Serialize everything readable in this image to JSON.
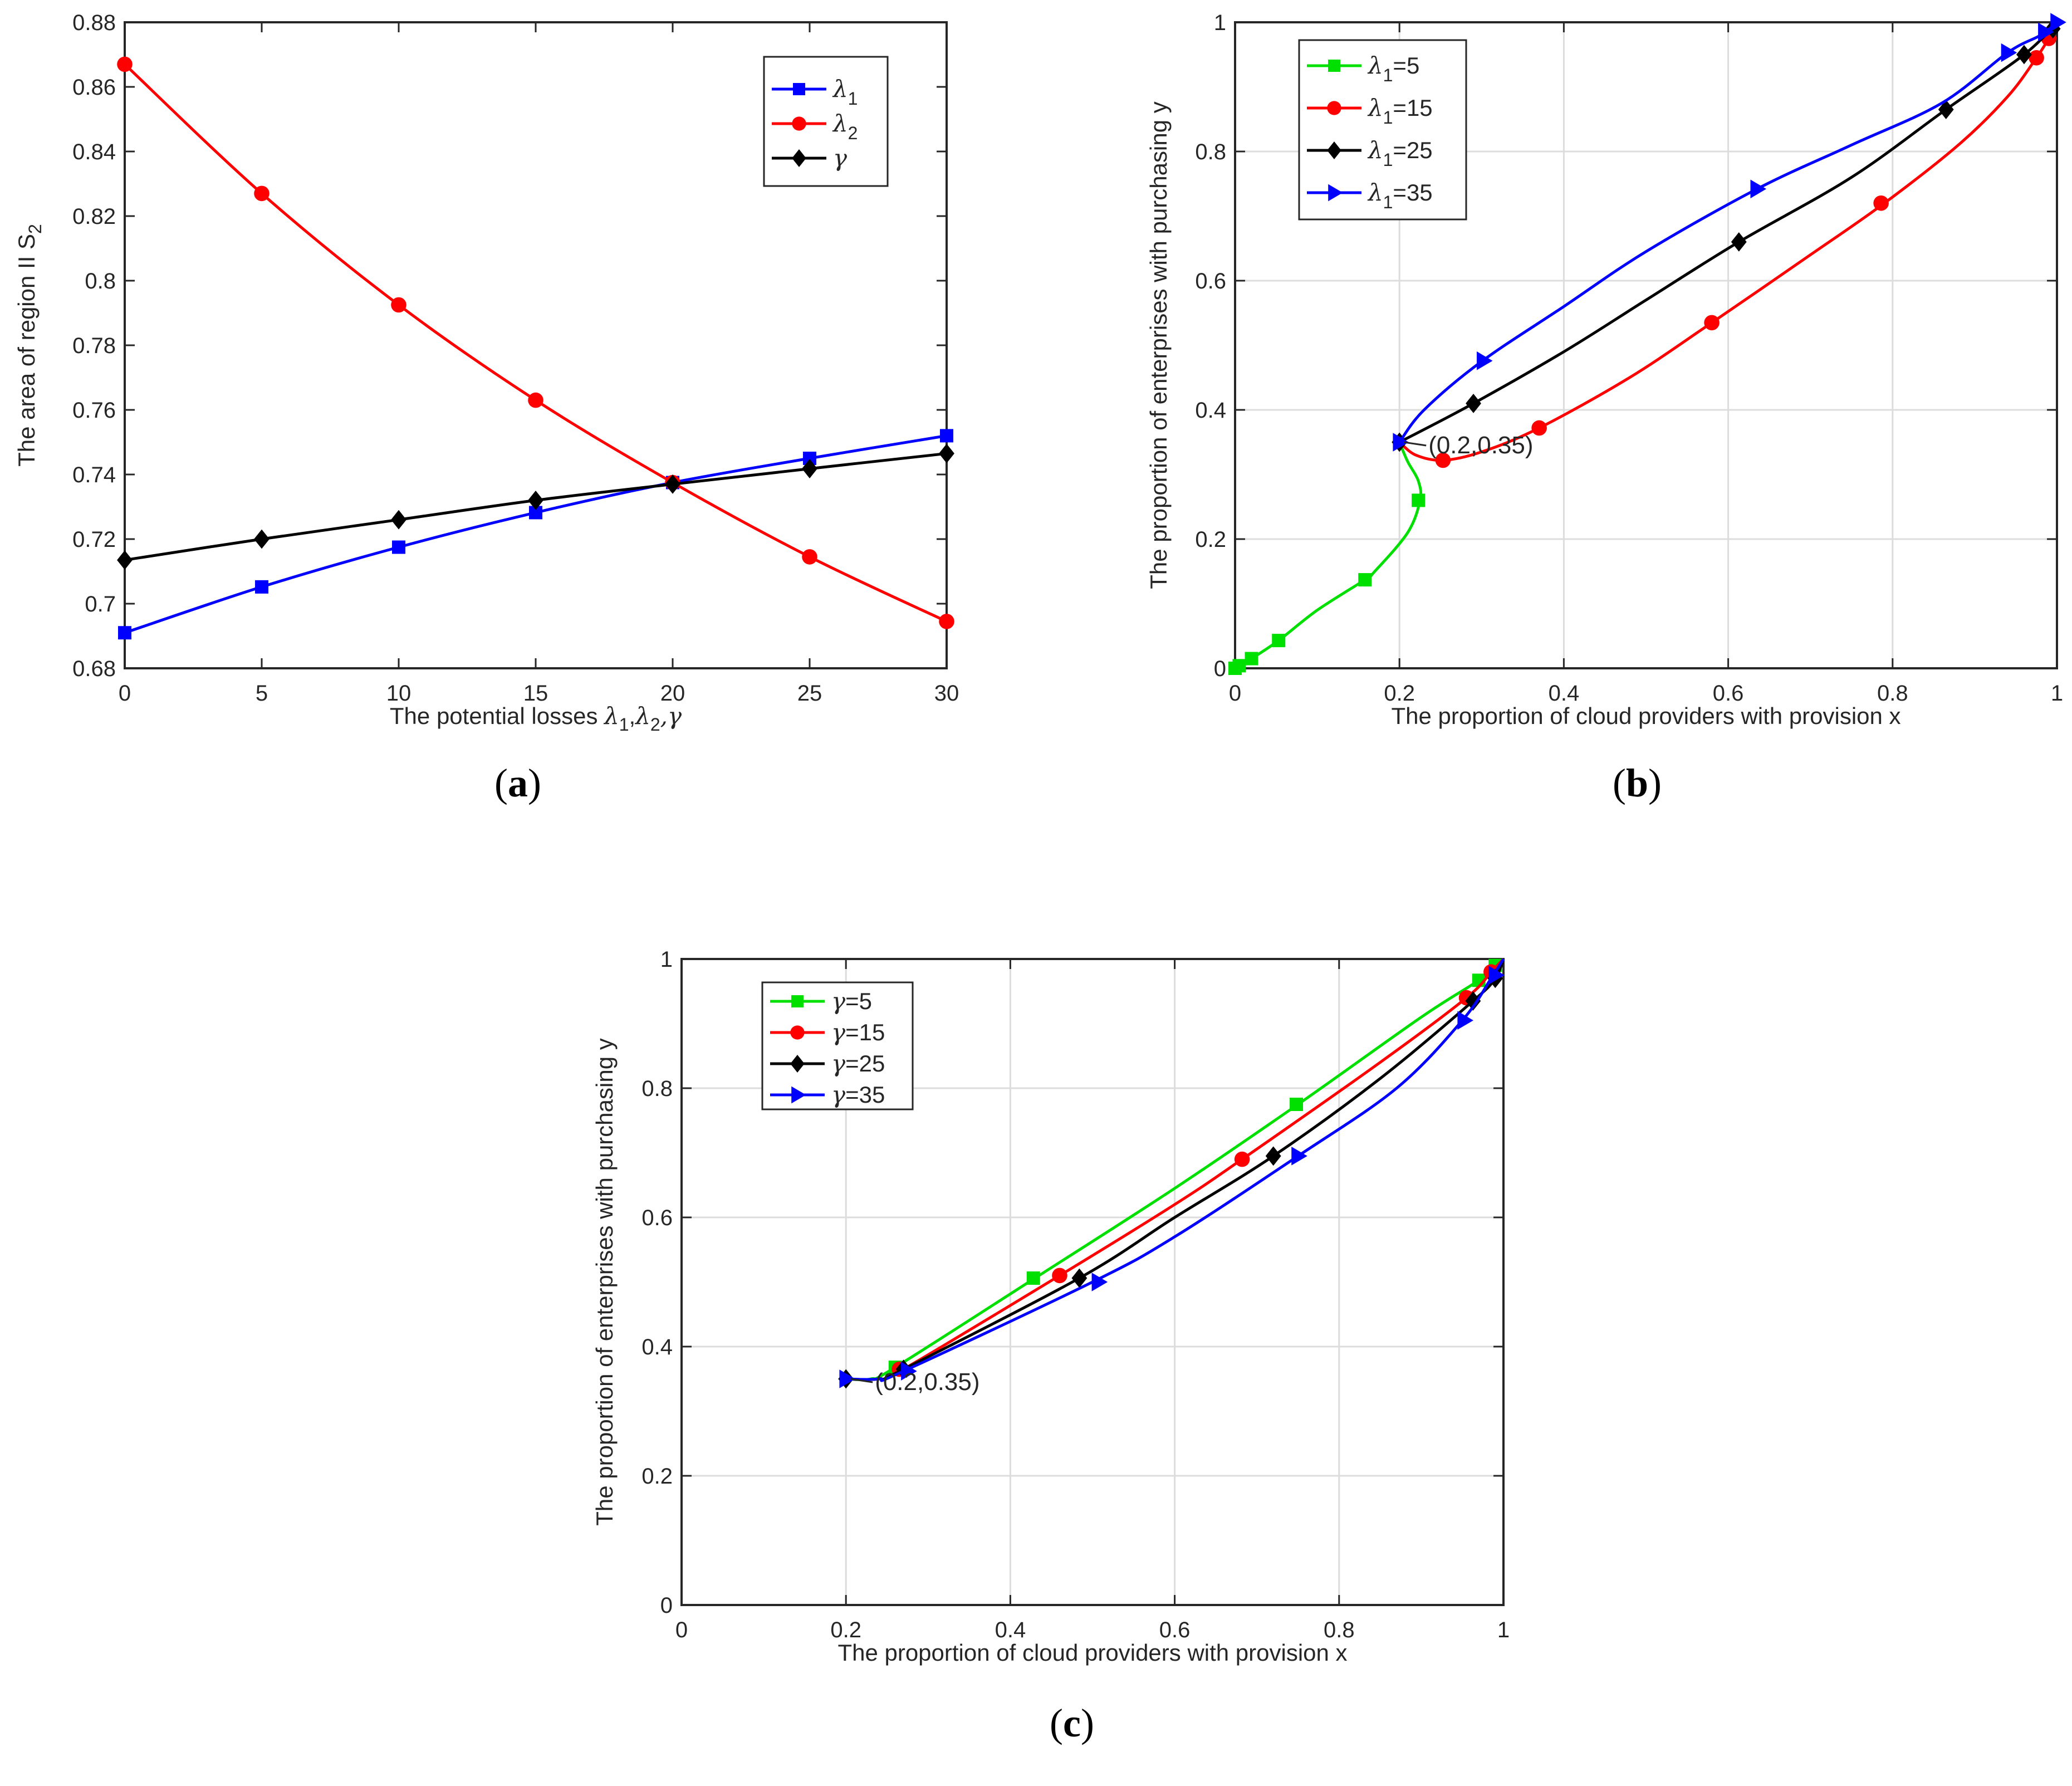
{
  "chart_data": [
    {
      "panel_label": "a",
      "type": "line",
      "xlabel": {
        "text": "The potential losses ",
        "math": [
          "λ",
          "1",
          ",",
          "λ",
          "2",
          ",γ"
        ]
      },
      "ylabel": {
        "text": "The area of region II S",
        "sub": "2"
      },
      "xlim": [
        0,
        30
      ],
      "ylim": [
        0.68,
        0.88
      ],
      "xticks": [
        0,
        5,
        10,
        15,
        20,
        25,
        30
      ],
      "xtick_labels": [
        "0",
        "5",
        "10",
        "15",
        "20",
        "25",
        "30"
      ],
      "yticks": [
        0.68,
        0.7,
        0.72,
        0.74,
        0.76,
        0.78,
        0.8,
        0.82,
        0.84,
        0.86,
        0.88
      ],
      "ytick_labels": [
        "0.68",
        "0.7",
        "0.72",
        "0.74",
        "0.76",
        "0.78",
        "0.8",
        "0.82",
        "0.84",
        "0.86",
        "0.88"
      ],
      "grid": false,
      "legend_position": "top-right",
      "series": [
        {
          "name": "λ1",
          "legend": {
            "sym": "λ",
            "sub": "1"
          },
          "color": "#0000ff",
          "marker": "square",
          "x": [
            0,
            5,
            10,
            15,
            20,
            25,
            30
          ],
          "y": [
            0.691,
            0.7052,
            0.7175,
            0.7282,
            0.7375,
            0.745,
            0.752
          ]
        },
        {
          "name": "λ2",
          "legend": {
            "sym": "λ",
            "sub": "2"
          },
          "color": "#ff0000",
          "marker": "circle",
          "x": [
            0,
            5,
            10,
            15,
            20,
            25,
            30
          ],
          "y": [
            0.867,
            0.827,
            0.7925,
            0.763,
            0.7375,
            0.7145,
            0.6945
          ]
        },
        {
          "name": "γ",
          "legend": {
            "sym": "γ",
            "sub": ""
          },
          "color": "#000000",
          "marker": "diamond",
          "x": [
            0,
            5,
            10,
            15,
            20,
            25,
            30
          ],
          "y": [
            0.7135,
            0.72,
            0.726,
            0.732,
            0.737,
            0.7418,
            0.7465
          ]
        }
      ]
    },
    {
      "panel_label": "b",
      "type": "line",
      "xlabel": {
        "text": "The proportion of cloud providers with provision x"
      },
      "ylabel": {
        "text": "The proportion of enterprises with purchasing y"
      },
      "xlim": [
        0,
        1
      ],
      "ylim": [
        0,
        1
      ],
      "xticks": [
        0,
        0.2,
        0.4,
        0.6,
        0.8,
        1
      ],
      "xtick_labels": [
        "0",
        "0.2",
        "0.4",
        "0.6",
        "0.8",
        "1"
      ],
      "yticks": [
        0,
        0.2,
        0.4,
        0.6,
        0.8,
        1
      ],
      "ytick_labels": [
        "0",
        "0.2",
        "0.4",
        "0.6",
        "0.8",
        "1"
      ],
      "grid": true,
      "legend_position": "top-left",
      "annotation": {
        "text": "(0.2,0.35)",
        "x": 0.2,
        "y": 0.35
      },
      "series": [
        {
          "name": "λ1=5",
          "legend": {
            "sym": "λ",
            "sub": "1",
            "tail": "=5"
          },
          "color": "#00e000",
          "marker": "square",
          "x": [
            0.2,
            0.21,
            0.223,
            0.225,
            0.21,
            0.17,
            0.158,
            0.1,
            0.053,
            0.02,
            0.005,
            0
          ],
          "y": [
            0.35,
            0.32,
            0.29,
            0.26,
            0.21,
            0.15,
            0.137,
            0.09,
            0.043,
            0.015,
            0.004,
            0
          ],
          "markers": [
            [
              0.223,
              0.26
            ],
            [
              0.158,
              0.137
            ],
            [
              0.053,
              0.043
            ],
            [
              0.02,
              0.015
            ],
            [
              0.005,
              0.004
            ],
            [
              0,
              0
            ]
          ]
        },
        {
          "name": "λ1=15",
          "legend": {
            "sym": "λ",
            "sub": "1",
            "tail": "=15"
          },
          "color": "#ff0000",
          "marker": "circle",
          "x": [
            0.2,
            0.22,
            0.253,
            0.3,
            0.37,
            0.48,
            0.58,
            0.7,
            0.79,
            0.88,
            0.94,
            0.975,
            0.99,
            1
          ],
          "y": [
            0.35,
            0.33,
            0.322,
            0.335,
            0.372,
            0.45,
            0.535,
            0.64,
            0.72,
            0.81,
            0.885,
            0.945,
            0.975,
            1
          ],
          "markers": [
            [
              0.253,
              0.322
            ],
            [
              0.37,
              0.372
            ],
            [
              0.58,
              0.535
            ],
            [
              0.786,
              0.72
            ],
            [
              0.975,
              0.945
            ],
            [
              0.99,
              0.975
            ]
          ]
        },
        {
          "name": "λ1=25",
          "legend": {
            "sym": "λ",
            "sub": "1",
            "tail": "=25"
          },
          "color": "#000000",
          "marker": "diamond",
          "x": [
            0.2,
            0.29,
            0.4,
            0.5,
            0.613,
            0.75,
            0.865,
            0.96,
            1
          ],
          "y": [
            0.35,
            0.41,
            0.49,
            0.57,
            0.66,
            0.76,
            0.865,
            0.95,
            1
          ],
          "markers": [
            [
              0.2,
              0.35
            ],
            [
              0.29,
              0.41
            ],
            [
              0.613,
              0.66
            ],
            [
              0.865,
              0.865
            ],
            [
              0.96,
              0.95
            ],
            [
              0.995,
              0.99
            ]
          ]
        },
        {
          "name": "λ1=35",
          "legend": {
            "sym": "λ",
            "sub": "1",
            "tail": "=35"
          },
          "color": "#0000ff",
          "marker": "triangle-right",
          "x": [
            0.2,
            0.23,
            0.3,
            0.4,
            0.5,
            0.635,
            0.75,
            0.86,
            0.94,
            0.98,
            1
          ],
          "y": [
            0.35,
            0.4,
            0.475,
            0.56,
            0.645,
            0.742,
            0.81,
            0.875,
            0.953,
            0.98,
            1
          ],
          "markers": [
            [
              0.2,
              0.35
            ],
            [
              0.302,
              0.476
            ],
            [
              0.635,
              0.742
            ],
            [
              0.94,
              0.953
            ],
            [
              0.985,
              0.985
            ],
            [
              1,
              1
            ]
          ]
        }
      ]
    },
    {
      "panel_label": "c",
      "type": "line",
      "xlabel": {
        "text": "The proportion of cloud providers with provision x"
      },
      "ylabel": {
        "text": "The proportion of enterprises with purchasing y"
      },
      "xlim": [
        0,
        1
      ],
      "ylim": [
        0,
        1
      ],
      "xticks": [
        0,
        0.2,
        0.4,
        0.6,
        0.8,
        1
      ],
      "xtick_labels": [
        "0",
        "0.2",
        "0.4",
        "0.6",
        "0.8",
        "1"
      ],
      "yticks": [
        0,
        0.2,
        0.4,
        0.6,
        0.8,
        1
      ],
      "ytick_labels": [
        "0",
        "0.2",
        "0.4",
        "0.6",
        "0.8",
        "1"
      ],
      "grid": true,
      "legend_position": "top-left",
      "annotation": {
        "text": "(0.2,0.35)",
        "x": 0.2,
        "y": 0.35
      },
      "series": [
        {
          "name": "γ=5",
          "legend": {
            "sym": "γ",
            "sub": "",
            "tail": "=5"
          },
          "color": "#00e000",
          "marker": "square",
          "x": [
            0.2,
            0.23,
            0.26,
            0.43,
            0.6,
            0.75,
            0.9,
            0.97,
            0.99,
            1
          ],
          "y": [
            0.35,
            0.35,
            0.368,
            0.506,
            0.645,
            0.775,
            0.91,
            0.967,
            0.99,
            1
          ],
          "markers": [
            [
              0.26,
              0.368
            ],
            [
              0.428,
              0.506
            ],
            [
              0.748,
              0.775
            ],
            [
              0.97,
              0.967
            ],
            [
              0.99,
              0.99
            ]
          ]
        },
        {
          "name": "γ=15",
          "legend": {
            "sym": "γ",
            "sub": "",
            "tail": "=15"
          },
          "color": "#ff0000",
          "marker": "circle",
          "x": [
            0.2,
            0.24,
            0.27,
            0.46,
            0.6,
            0.682,
            0.85,
            0.955,
            0.985,
            1
          ],
          "y": [
            0.35,
            0.35,
            0.365,
            0.51,
            0.62,
            0.69,
            0.84,
            0.94,
            0.98,
            1
          ],
          "markers": [
            [
              0.265,
              0.365
            ],
            [
              0.46,
              0.51
            ],
            [
              0.682,
              0.69
            ],
            [
              0.955,
              0.94
            ],
            [
              0.985,
              0.98
            ]
          ]
        },
        {
          "name": "γ=25",
          "legend": {
            "sym": "γ",
            "sub": "",
            "tail": "=25"
          },
          "color": "#000000",
          "marker": "diamond",
          "x": [
            0.2,
            0.24,
            0.27,
            0.484,
            0.6,
            0.72,
            0.85,
            0.963,
            0.99,
            1
          ],
          "y": [
            0.35,
            0.35,
            0.365,
            0.506,
            0.6,
            0.695,
            0.815,
            0.935,
            0.97,
            1
          ],
          "markers": [
            [
              0.2,
              0.35
            ],
            [
              0.27,
              0.365
            ],
            [
              0.484,
              0.506
            ],
            [
              0.72,
              0.695
            ],
            [
              0.963,
              0.935
            ],
            [
              0.99,
              0.97
            ]
          ]
        },
        {
          "name": "γ=35",
          "legend": {
            "sym": "γ",
            "sub": "",
            "tail": "=35"
          },
          "color": "#0000ff",
          "marker": "triangle-right",
          "x": [
            0.2,
            0.24,
            0.27,
            0.5,
            0.6,
            0.75,
            0.87,
            0.95,
            0.985,
            1
          ],
          "y": [
            0.35,
            0.35,
            0.362,
            0.5,
            0.57,
            0.695,
            0.8,
            0.905,
            0.97,
            1
          ],
          "markers": [
            [
              0.2,
              0.35
            ],
            [
              0.275,
              0.362
            ],
            [
              0.507,
              0.5
            ],
            [
              0.75,
              0.695
            ],
            [
              0.952,
              0.905
            ],
            [
              0.99,
              0.975
            ]
          ]
        }
      ]
    }
  ]
}
